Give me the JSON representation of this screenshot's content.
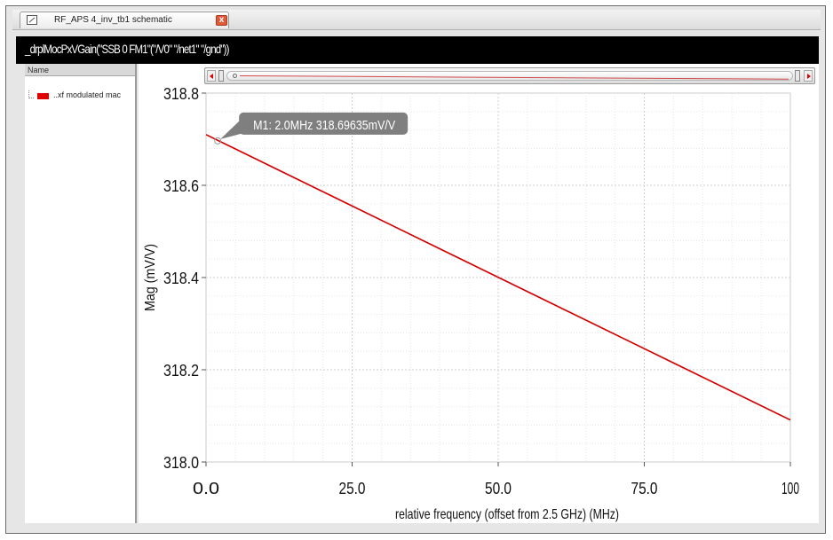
{
  "window": {
    "tab_title": "RF_APS 4_inv_tb1 schematic",
    "tab_close": "x",
    "plot_title": "_drplMocPxVGain(\"SSB 0 FM1\"(\"/V0\" \"/net1\" \"/gnd\"))"
  },
  "legend_panel": {
    "header": "Name",
    "items": [
      {
        "label": "..xf modulated mac",
        "color": "#e00000"
      }
    ]
  },
  "chart_data": {
    "type": "line",
    "xlabel": "relative frequency (offset from 2.5 GHz) (MHz)",
    "ylabel": "Mag (mV/V)",
    "xlim": [
      0.0,
      100
    ],
    "ylim": [
      318.0,
      318.8
    ],
    "x_ticks": [
      0.0,
      25.0,
      50.0,
      75.0,
      100
    ],
    "x_tick_labels": [
      "0.0",
      "25.0",
      "50.0",
      "75.0",
      "100"
    ],
    "y_ticks": [
      318.0,
      318.2,
      318.4,
      318.6,
      318.8
    ],
    "y_tick_labels": [
      "318.0",
      "318.2",
      "318.4",
      "318.6",
      "318.8"
    ],
    "grid": true,
    "series": [
      {
        "color": "#d40000",
        "x": [
          0.0,
          100
        ],
        "y": [
          318.71,
          318.091
        ]
      }
    ],
    "marker": {
      "label": "M1: 2.0MHz 318.69635mV/V",
      "x": 2.0,
      "y": 318.69635
    }
  }
}
